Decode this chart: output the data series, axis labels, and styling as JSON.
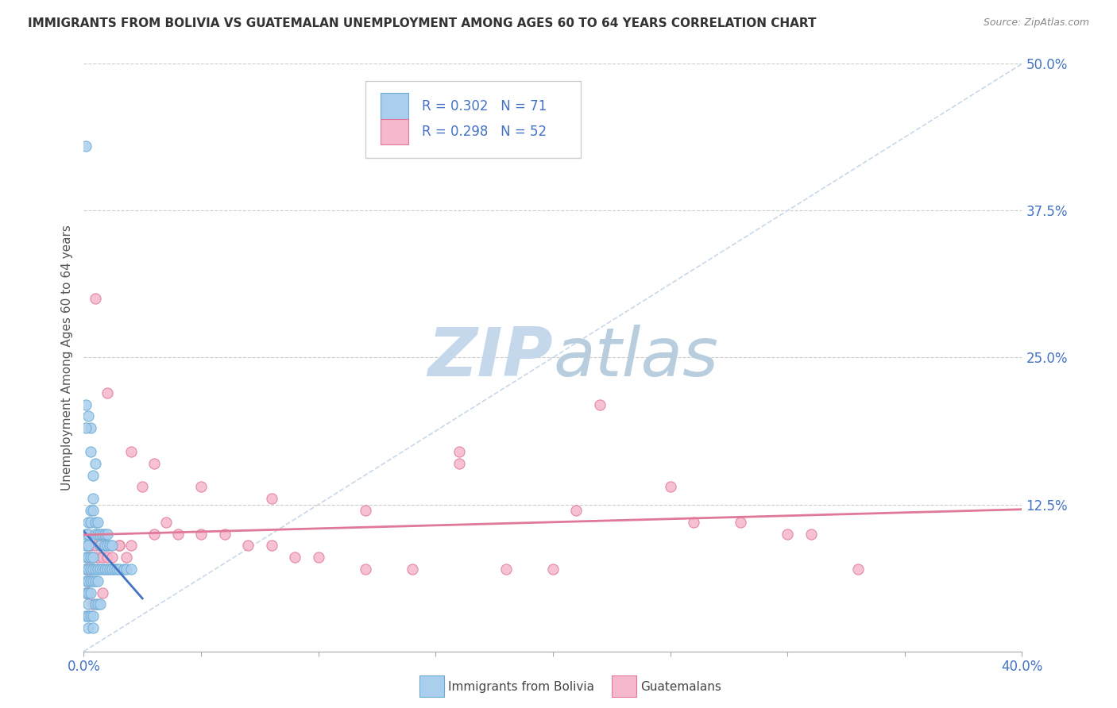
{
  "title": "IMMIGRANTS FROM BOLIVIA VS GUATEMALAN UNEMPLOYMENT AMONG AGES 60 TO 64 YEARS CORRELATION CHART",
  "source": "Source: ZipAtlas.com",
  "ylabel": "Unemployment Among Ages 60 to 64 years",
  "xlim": [
    0.0,
    0.4
  ],
  "ylim": [
    0.0,
    0.5
  ],
  "ytick_right_labels": [
    "50.0%",
    "37.5%",
    "25.0%",
    "12.5%",
    ""
  ],
  "ytick_right_values": [
    0.5,
    0.375,
    0.25,
    0.125,
    0.0
  ],
  "bolivia_color": "#aacfee",
  "guatemala_color": "#f5b8cc",
  "bolivia_edge": "#6aaad4",
  "guatemala_edge": "#e07898",
  "trend_bolivia_color": "#4472c4",
  "trend_guatemala_color": "#e07898",
  "diagonal_color": "#c8d8e8",
  "watermark_main": "#c8d8e8",
  "watermark_atlas": "#b0c4d8",
  "legend_text_color": "#333333",
  "legend_num_color": "#4472c4",
  "bolivia_x": [
    0.002,
    0.003,
    0.003,
    0.004,
    0.005,
    0.001,
    0.001,
    0.001,
    0.001,
    0.002,
    0.002,
    0.002,
    0.003,
    0.003,
    0.004,
    0.004,
    0.005,
    0.005,
    0.006,
    0.006,
    0.007,
    0.007,
    0.008,
    0.009,
    0.009,
    0.01,
    0.01,
    0.011,
    0.012,
    0.001,
    0.001,
    0.001,
    0.001,
    0.002,
    0.002,
    0.002,
    0.002,
    0.002,
    0.003,
    0.003,
    0.003,
    0.003,
    0.004,
    0.004,
    0.004,
    0.005,
    0.005,
    0.006,
    0.006,
    0.007,
    0.008,
    0.009,
    0.01,
    0.011,
    0.012,
    0.013,
    0.014,
    0.015,
    0.017,
    0.018,
    0.02,
    0.001,
    0.001,
    0.002,
    0.002,
    0.003,
    0.004,
    0.004,
    0.005,
    0.006,
    0.007
  ],
  "bolivia_y": [
    0.2,
    0.19,
    0.17,
    0.15,
    0.16,
    0.21,
    0.19,
    0.1,
    0.09,
    0.11,
    0.1,
    0.09,
    0.12,
    0.11,
    0.13,
    0.12,
    0.11,
    0.1,
    0.11,
    0.1,
    0.1,
    0.09,
    0.1,
    0.1,
    0.09,
    0.1,
    0.09,
    0.09,
    0.09,
    0.08,
    0.07,
    0.06,
    0.05,
    0.08,
    0.07,
    0.06,
    0.05,
    0.04,
    0.08,
    0.07,
    0.06,
    0.05,
    0.08,
    0.07,
    0.06,
    0.07,
    0.06,
    0.07,
    0.06,
    0.07,
    0.07,
    0.07,
    0.07,
    0.07,
    0.07,
    0.07,
    0.07,
    0.07,
    0.07,
    0.07,
    0.07,
    0.43,
    0.03,
    0.03,
    0.02,
    0.03,
    0.03,
    0.02,
    0.04,
    0.04,
    0.04
  ],
  "guatemala_x": [
    0.001,
    0.001,
    0.002,
    0.002,
    0.003,
    0.003,
    0.004,
    0.005,
    0.006,
    0.007,
    0.008,
    0.009,
    0.01,
    0.012,
    0.015,
    0.018,
    0.02,
    0.025,
    0.03,
    0.035,
    0.04,
    0.05,
    0.06,
    0.07,
    0.08,
    0.09,
    0.1,
    0.12,
    0.14,
    0.16,
    0.18,
    0.2,
    0.22,
    0.25,
    0.28,
    0.3,
    0.33,
    0.005,
    0.01,
    0.02,
    0.03,
    0.05,
    0.08,
    0.12,
    0.16,
    0.21,
    0.26,
    0.31,
    0.002,
    0.004,
    0.008,
    0.015
  ],
  "guatemala_y": [
    0.07,
    0.05,
    0.08,
    0.06,
    0.09,
    0.07,
    0.08,
    0.09,
    0.08,
    0.09,
    0.08,
    0.09,
    0.08,
    0.08,
    0.09,
    0.08,
    0.09,
    0.14,
    0.1,
    0.11,
    0.1,
    0.1,
    0.1,
    0.09,
    0.09,
    0.08,
    0.08,
    0.07,
    0.07,
    0.16,
    0.07,
    0.07,
    0.21,
    0.14,
    0.11,
    0.1,
    0.07,
    0.3,
    0.22,
    0.17,
    0.16,
    0.14,
    0.13,
    0.12,
    0.17,
    0.12,
    0.11,
    0.1,
    0.05,
    0.04,
    0.05,
    0.09
  ]
}
